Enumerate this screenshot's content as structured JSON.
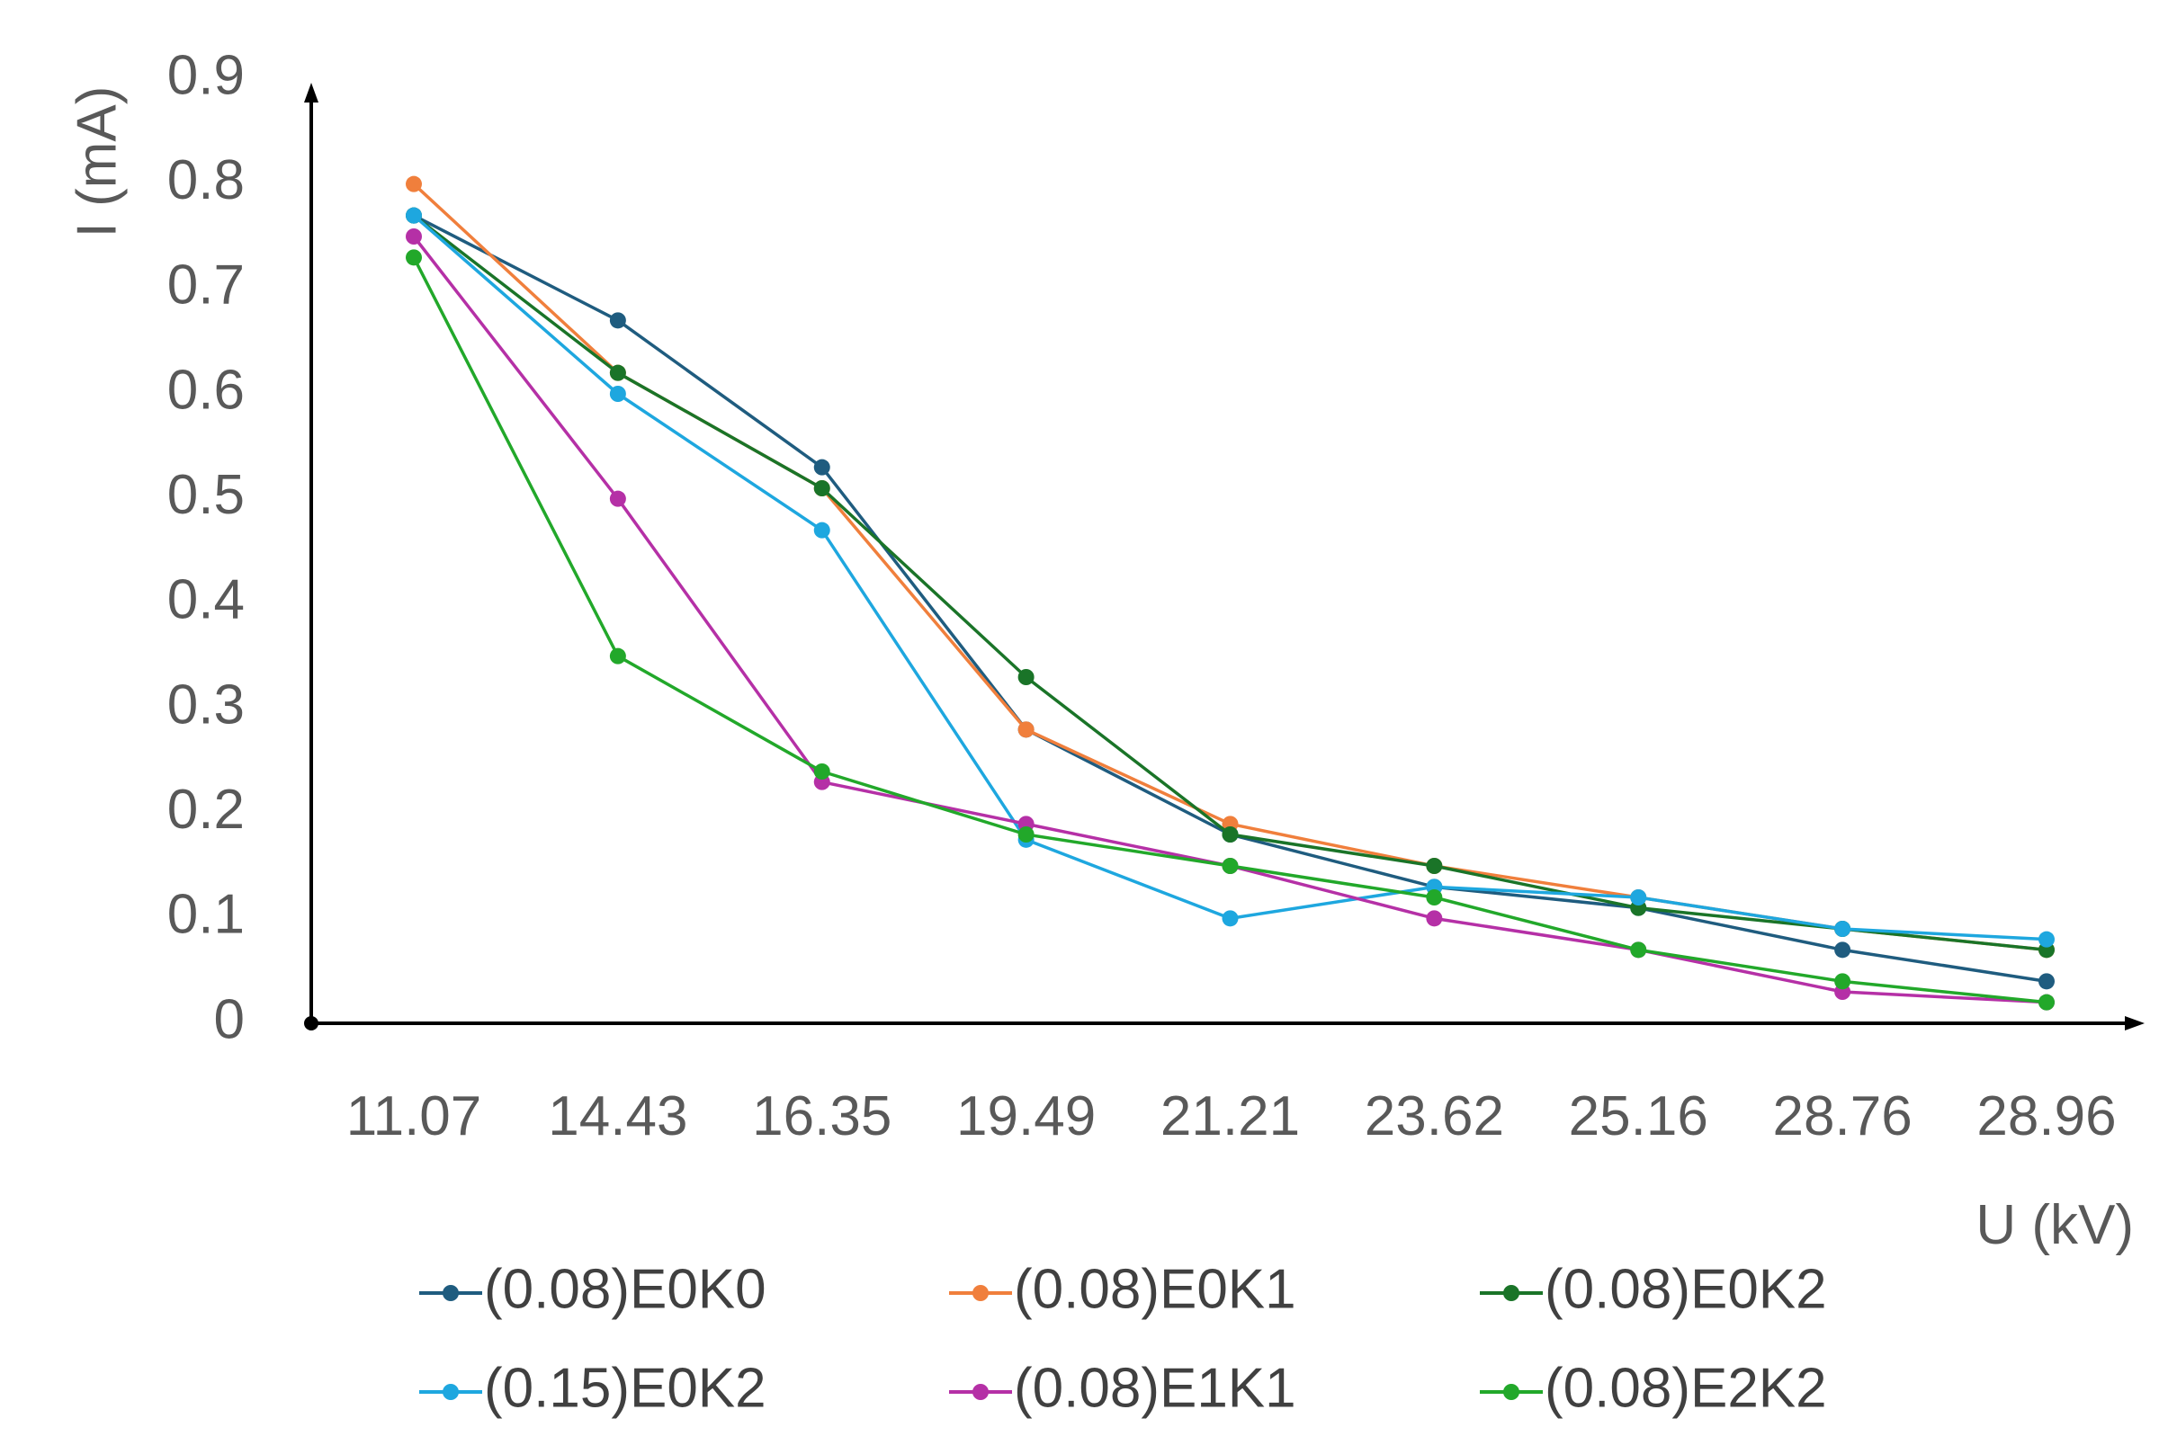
{
  "chart_data": {
    "type": "line",
    "xlabel": "U (kV)",
    "ylabel": "I (mA)",
    "categories": [
      "11.07",
      "14.43",
      "16.35",
      "19.49",
      "21.21",
      "23.62",
      "25.16",
      "28.76",
      "28.96"
    ],
    "ylim": [
      0,
      0.9
    ],
    "yticks": [
      "0",
      "0.1",
      "0.2",
      "0.3",
      "0.4",
      "0.5",
      "0.6",
      "0.7",
      "0.8",
      "0.9"
    ],
    "grid": false,
    "legend_position": "bottom",
    "series": [
      {
        "name": "(0.08)E0K0",
        "color": "#1F5C7F",
        "values": [
          0.77,
          0.67,
          0.53,
          0.28,
          0.18,
          0.13,
          0.11,
          0.07,
          0.04
        ]
      },
      {
        "name": "(0.08)E0K1",
        "color": "#F07F3C",
        "values": [
          0.8,
          0.62,
          0.51,
          0.28,
          0.19,
          0.15,
          0.12,
          0.09,
          0.07
        ]
      },
      {
        "name": "(0.08)E0K2",
        "color": "#1A7428",
        "values": [
          0.77,
          0.62,
          0.51,
          0.33,
          0.18,
          0.15,
          0.11,
          0.09,
          0.07
        ]
      },
      {
        "name": "(0.15)E0K2",
        "color": "#1EA7DF",
        "values": [
          0.77,
          0.6,
          0.47,
          0.175,
          0.1,
          0.13,
          0.12,
          0.09,
          0.08
        ]
      },
      {
        "name": "(0.08)E1K1",
        "color": "#B530A6",
        "values": [
          0.75,
          0.5,
          0.23,
          0.19,
          0.15,
          0.1,
          0.07,
          0.03,
          0.02
        ]
      },
      {
        "name": "(0.08)E2K2",
        "color": "#22A82A",
        "values": [
          0.73,
          0.35,
          0.24,
          0.18,
          0.15,
          0.12,
          0.07,
          0.04,
          0.02
        ]
      }
    ]
  }
}
